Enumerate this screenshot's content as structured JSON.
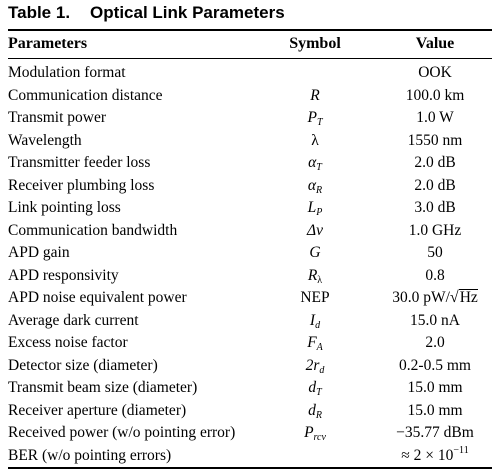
{
  "table": {
    "number_label": "Table 1.",
    "title": "Optical Link Parameters",
    "headers": {
      "parameters": "Parameters",
      "symbol": "Symbol",
      "value": "Value"
    },
    "rows": [
      {
        "parameter": "Modulation format",
        "symbol": "",
        "value": "OOK"
      },
      {
        "parameter": "Communication distance",
        "symbol": "R",
        "value": "100.0 km"
      },
      {
        "parameter": "Transmit power",
        "symbol": "P",
        "symbol_sub": "T",
        "value": "1.0 W"
      },
      {
        "parameter": "Wavelength",
        "symbol": "λ",
        "value": "1550 nm"
      },
      {
        "parameter": "Transmitter feeder loss",
        "symbol": "α",
        "symbol_sub": "T",
        "value": "2.0 dB"
      },
      {
        "parameter": "Receiver plumbing loss",
        "symbol": "α",
        "symbol_sub": "R",
        "value": "2.0 dB"
      },
      {
        "parameter": "Link pointing loss",
        "symbol": "L",
        "symbol_sub": "P",
        "value": "3.0 dB"
      },
      {
        "parameter": "Communication bandwidth",
        "symbol": "Δν",
        "value": "1.0 GHz"
      },
      {
        "parameter": "APD gain",
        "symbol": "G",
        "value": "50"
      },
      {
        "parameter": "APD responsivity",
        "symbol": "R",
        "symbol_sub": "λ",
        "value": "0.8"
      },
      {
        "parameter": "APD noise equivalent power",
        "symbol": "NEP",
        "value_prefix": "30.0 pW/",
        "value_sqrt": "Hz"
      },
      {
        "parameter": "Average dark current",
        "symbol": "I",
        "symbol_sub": "d",
        "value": "15.0 nA"
      },
      {
        "parameter": "Excess noise factor",
        "symbol": "F",
        "symbol_sub": "A",
        "value": "2.0"
      },
      {
        "parameter": "Detector size (diameter)",
        "symbol_prefix": "2",
        "symbol": "r",
        "symbol_sub": "d",
        "value": "0.2-0.5 mm"
      },
      {
        "parameter": "Transmit beam size (diameter)",
        "symbol": "d",
        "symbol_sub": "T",
        "value": "15.0 mm"
      },
      {
        "parameter": "Receiver aperture (diameter)",
        "symbol": "d",
        "symbol_sub": "R",
        "value": "15.0 mm"
      },
      {
        "parameter": "Received power (w/o pointing error)",
        "symbol": "P",
        "symbol_sub": "rcv",
        "value": "−35.77 dBm"
      },
      {
        "parameter": "BER (w/o pointing errors)",
        "symbol": "",
        "value_prefix": "≈ 2 × 10",
        "value_sup": "−11"
      }
    ]
  }
}
